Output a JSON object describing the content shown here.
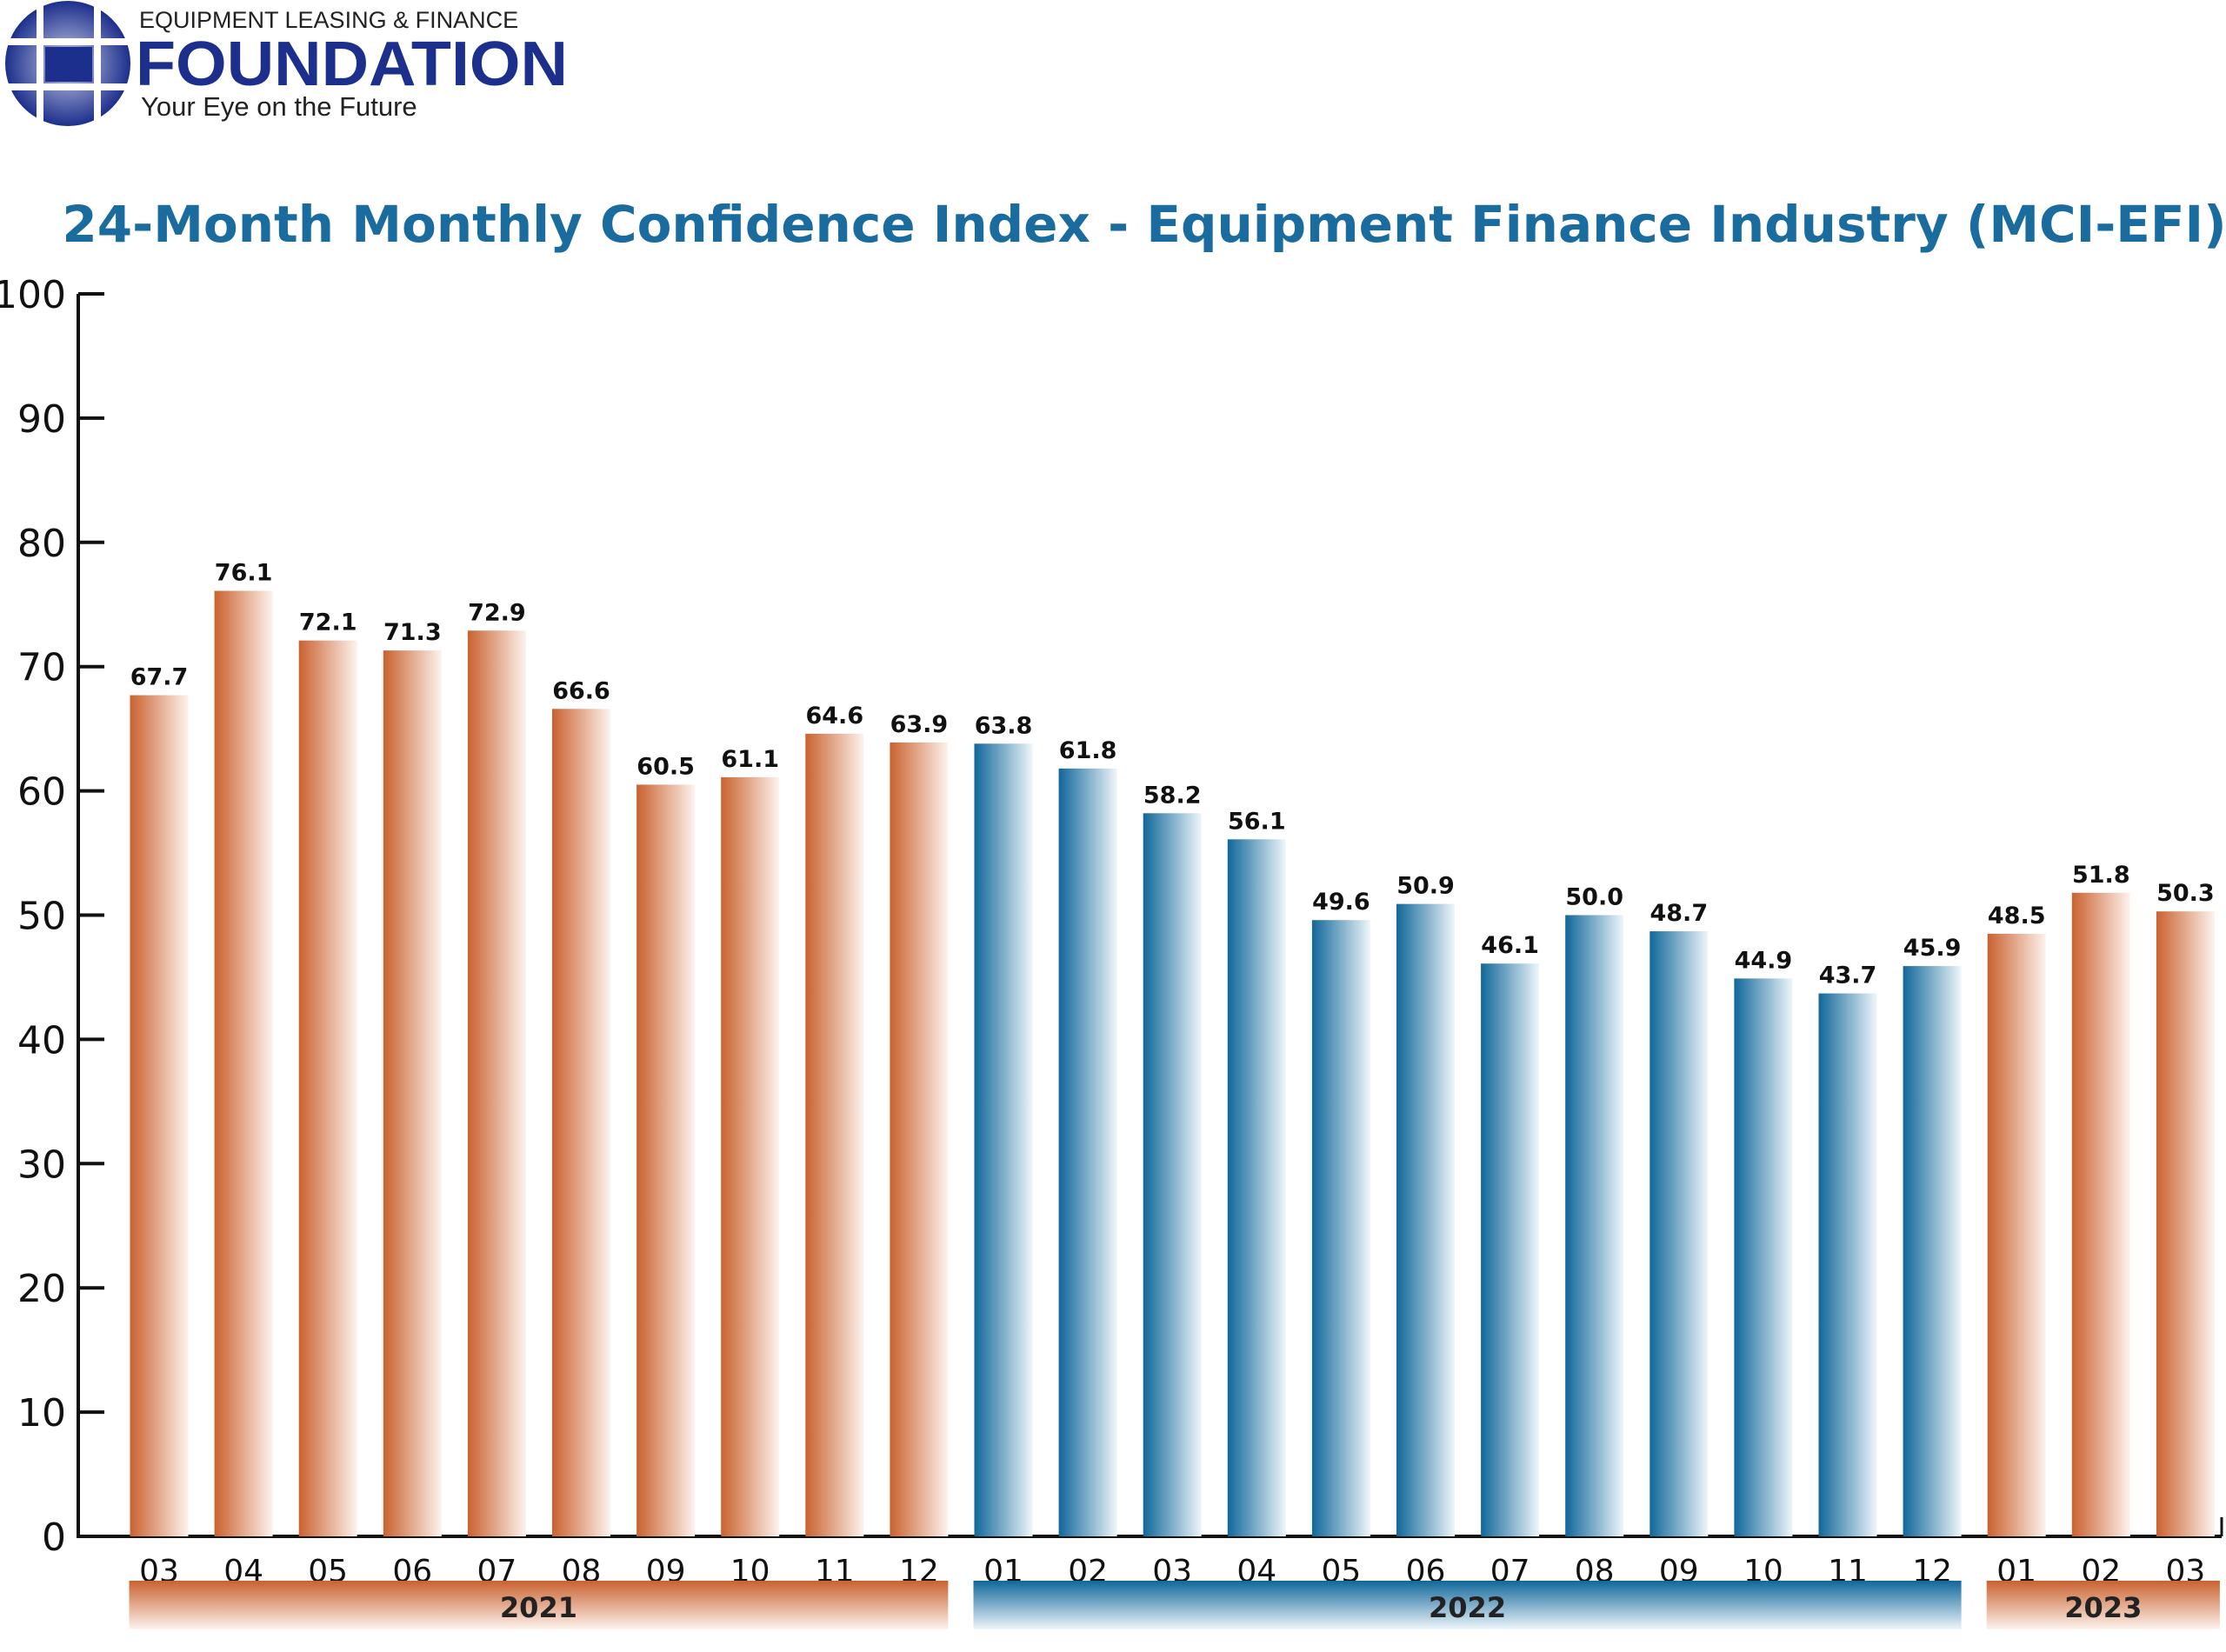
{
  "logo": {
    "line1": "EQUIPMENT LEASING & FINANCE",
    "name": "FOUNDATION",
    "tagline": "Your Eye on the Future"
  },
  "chart_data": {
    "type": "bar",
    "title": "24-Month Monthly Confidence Index - Equipment Finance Industry (MCI-EFI)",
    "xlabel": "",
    "ylabel": "",
    "ylim": [
      0,
      100
    ],
    "yticks": [
      0,
      10,
      20,
      30,
      40,
      50,
      60,
      70,
      80,
      90,
      100
    ],
    "grid": false,
    "categories": [
      "03",
      "04",
      "05",
      "06",
      "07",
      "08",
      "09",
      "10",
      "11",
      "12",
      "01",
      "02",
      "03",
      "04",
      "05",
      "06",
      "07",
      "08",
      "09",
      "10",
      "11",
      "12",
      "01",
      "02",
      "03"
    ],
    "values": [
      67.7,
      76.1,
      72.1,
      71.3,
      72.9,
      66.6,
      60.5,
      61.1,
      64.6,
      63.9,
      63.8,
      61.8,
      58.2,
      56.1,
      49.6,
      50.9,
      46.1,
      50.0,
      48.7,
      44.9,
      43.7,
      45.9,
      48.5,
      51.8,
      50.3
    ],
    "labels": [
      "67.7",
      "76.1",
      "72.1",
      "71.3",
      "72.9",
      "66.6",
      "60.5",
      "61.1",
      "64.6",
      "63.9",
      "63.8",
      "61.8",
      "58.2",
      "56.1",
      "49.6",
      "50.9",
      "46.1",
      "50.0",
      "48.7",
      "44.9",
      "43.7",
      "45.9",
      "48.5",
      "51.8",
      "50.3"
    ],
    "groups": [
      {
        "name": "2021",
        "start": 0,
        "end": 9,
        "color": "#cc6a3c"
      },
      {
        "name": "2022",
        "start": 10,
        "end": 21,
        "color": "#1a6e9c"
      },
      {
        "name": "2023",
        "start": 22,
        "end": 24,
        "color": "#cc6a3c"
      }
    ]
  }
}
